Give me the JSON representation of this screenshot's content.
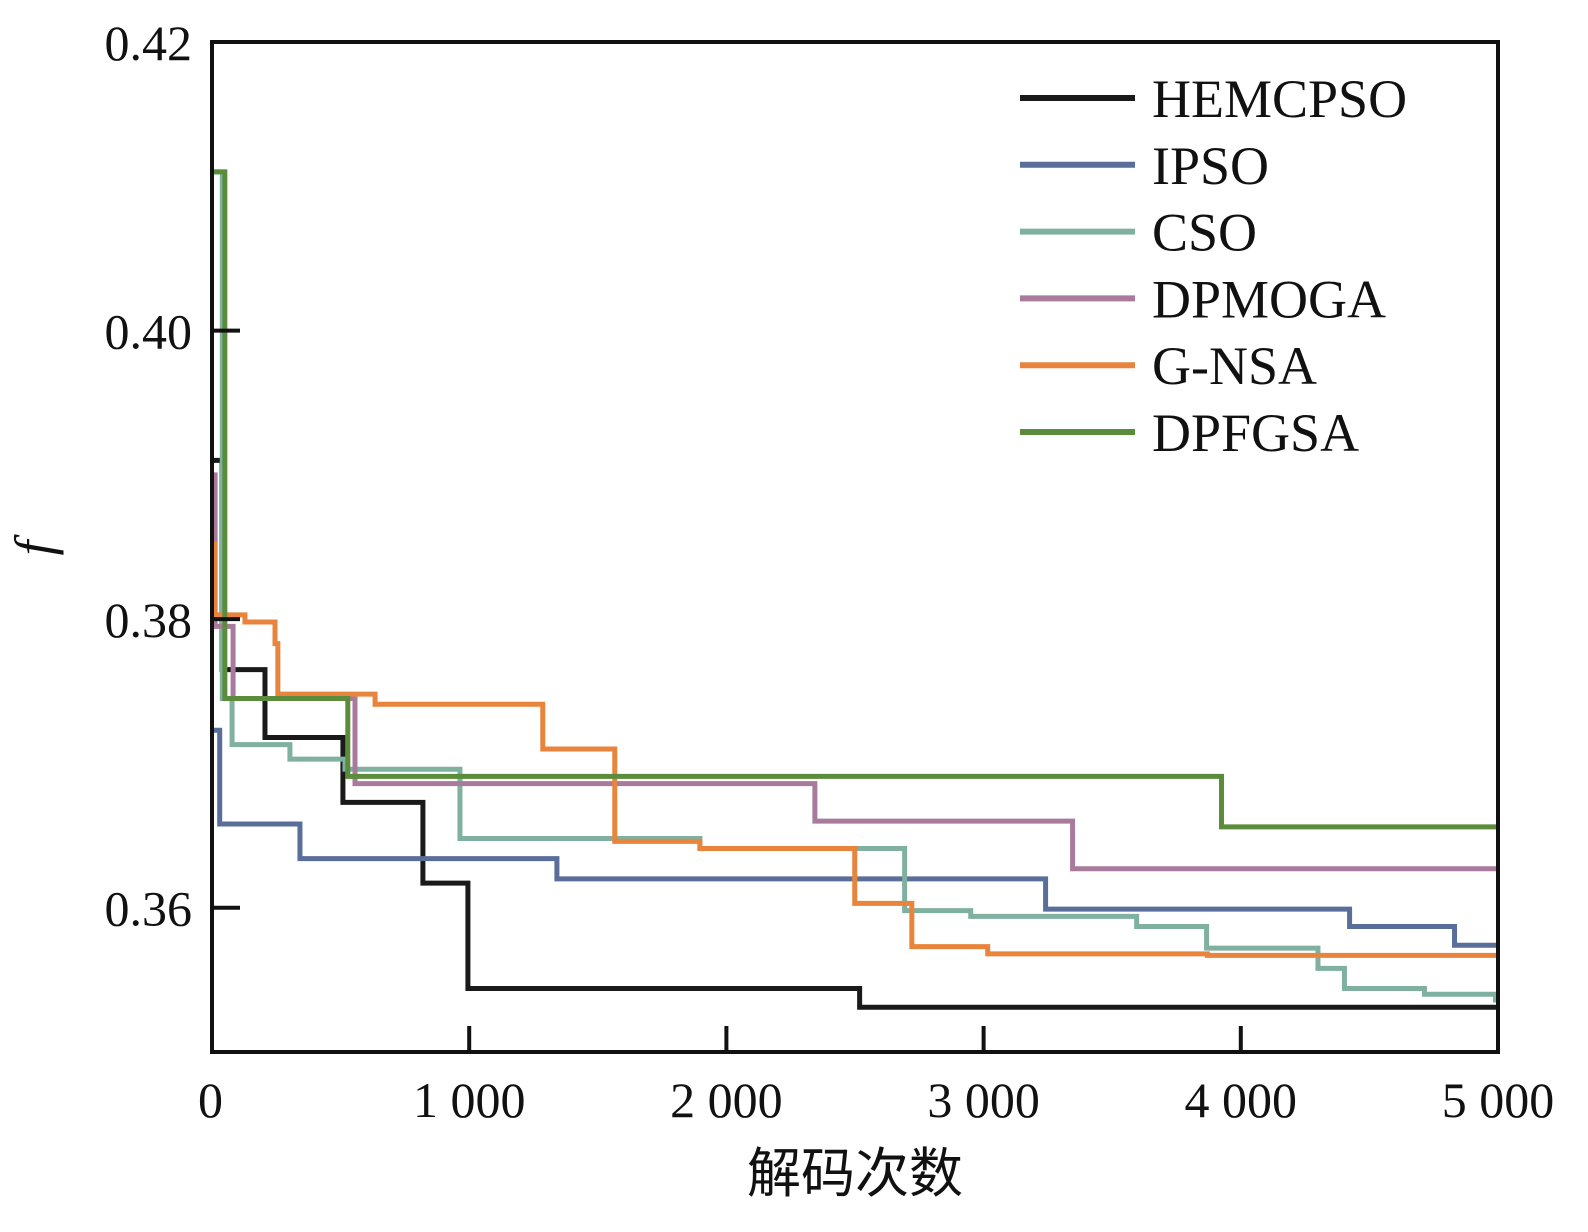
{
  "chart_data": {
    "type": "line",
    "step": "post",
    "title": "",
    "xlabel": "解码次数",
    "ylabel": "f",
    "xlim": [
      0,
      5000
    ],
    "ylim": [
      0.35,
      0.42
    ],
    "xticks": [
      0,
      1000,
      2000,
      3000,
      4000,
      5000
    ],
    "xtick_labels": [
      "0",
      "1 000",
      "2 000",
      "3 000",
      "4 000",
      "5 000"
    ],
    "yticks": [
      0.36,
      0.38,
      0.4,
      0.42
    ],
    "ytick_labels": [
      "0.36",
      "0.38",
      "0.40",
      "0.42"
    ],
    "grid": false,
    "legend_position": "top-right",
    "series": [
      {
        "name": "HEMCPSO",
        "color": "#1a1a1a",
        "points": [
          [
            0,
            0.391
          ],
          [
            39,
            0.3765
          ],
          [
            206,
            0.3718
          ],
          [
            509,
            0.3673
          ],
          [
            820,
            0.3617
          ],
          [
            995,
            0.3544
          ],
          [
            2518,
            0.3531
          ],
          [
            5000,
            0.3531
          ]
        ]
      },
      {
        "name": "IPSO",
        "color": "#5a6e9a",
        "points": [
          [
            0,
            0.3723
          ],
          [
            30,
            0.3658
          ],
          [
            342,
            0.3634
          ],
          [
            1341,
            0.362
          ],
          [
            3241,
            0.3599
          ],
          [
            4423,
            0.3587
          ],
          [
            4831,
            0.3574
          ],
          [
            5000,
            0.3574
          ]
        ]
      },
      {
        "name": "CSO",
        "color": "#7fb0a0",
        "points": [
          [
            0,
            0.411
          ],
          [
            40,
            0.3745
          ],
          [
            78,
            0.3713
          ],
          [
            303,
            0.3703
          ],
          [
            517,
            0.3696
          ],
          [
            964,
            0.3648
          ],
          [
            1897,
            0.3641
          ],
          [
            2693,
            0.3598
          ],
          [
            2950,
            0.3594
          ],
          [
            3595,
            0.3587
          ],
          [
            3867,
            0.3572
          ],
          [
            4300,
            0.3558
          ],
          [
            4403,
            0.3544
          ],
          [
            4714,
            0.354
          ],
          [
            4990,
            0.3536
          ],
          [
            5000,
            0.3536
          ]
        ]
      },
      {
        "name": "DPMOGA",
        "color": "#a87a9c",
        "points": [
          [
            0,
            0.39
          ],
          [
            12,
            0.3795
          ],
          [
            82,
            0.3745
          ],
          [
            556,
            0.3686
          ],
          [
            2344,
            0.366
          ],
          [
            3346,
            0.3627
          ],
          [
            5000,
            0.3627
          ]
        ]
      },
      {
        "name": "G-NSA",
        "color": "#e8843c",
        "points": [
          [
            0,
            0.3852
          ],
          [
            12,
            0.3803
          ],
          [
            128,
            0.3798
          ],
          [
            245,
            0.3783
          ],
          [
            256,
            0.3748
          ],
          [
            634,
            0.3741
          ],
          [
            1286,
            0.371
          ],
          [
            1566,
            0.3646
          ],
          [
            1897,
            0.3641
          ],
          [
            2499,
            0.3603
          ],
          [
            2721,
            0.3573
          ],
          [
            3016,
            0.3568
          ],
          [
            3870,
            0.3567
          ],
          [
            5000,
            0.3567
          ]
        ]
      },
      {
        "name": "DPFGSA",
        "color": "#5a8c3c",
        "points": [
          [
            0,
            0.411
          ],
          [
            50,
            0.3745
          ],
          [
            528,
            0.3691
          ],
          [
            3925,
            0.3656
          ],
          [
            5000,
            0.3656
          ]
        ]
      }
    ]
  }
}
